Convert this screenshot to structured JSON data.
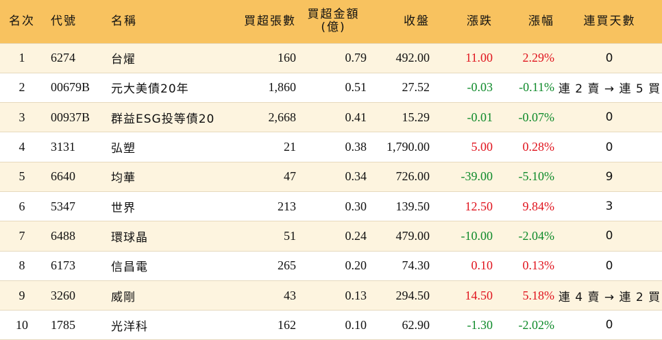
{
  "colors": {
    "header_bg": "#f8c25f",
    "odd_row_bg": "#fdf4df",
    "even_row_bg": "#ffffff",
    "up": "#e0141e",
    "down": "#0e8a2a"
  },
  "headers": {
    "rank": "名次",
    "code": "代號",
    "name": "名稱",
    "net_buy_qty": "買超張數",
    "net_buy_amount_line1": "買超金額",
    "net_buy_amount_line2": "(億)",
    "close": "收盤",
    "change": "漲跌",
    "change_pct": "漲幅",
    "streak": "連買天數"
  },
  "rows": [
    {
      "rank": "1",
      "code": "6274",
      "name": "台燿",
      "qty": "160",
      "amount": "0.79",
      "close": "492.00",
      "change": "11.00",
      "pct": "2.29%",
      "dir": "up",
      "streak": "0"
    },
    {
      "rank": "2",
      "code": "00679B",
      "name": "元大美債20年",
      "qty": "1,860",
      "amount": "0.51",
      "close": "27.52",
      "change": "-0.03",
      "pct": "-0.11%",
      "dir": "down",
      "streak": "連 2 賣 → 連 5 買"
    },
    {
      "rank": "3",
      "code": "00937B",
      "name": "群益ESG投等債20",
      "qty": "2,668",
      "amount": "0.41",
      "close": "15.29",
      "change": "-0.01",
      "pct": "-0.07%",
      "dir": "down",
      "streak": "0"
    },
    {
      "rank": "4",
      "code": "3131",
      "name": "弘塑",
      "qty": "21",
      "amount": "0.38",
      "close": "1,790.00",
      "change": "5.00",
      "pct": "0.28%",
      "dir": "up",
      "streak": "0"
    },
    {
      "rank": "5",
      "code": "6640",
      "name": "均華",
      "qty": "47",
      "amount": "0.34",
      "close": "726.00",
      "change": "-39.00",
      "pct": "-5.10%",
      "dir": "down",
      "streak": "9"
    },
    {
      "rank": "6",
      "code": "5347",
      "name": "世界",
      "qty": "213",
      "amount": "0.30",
      "close": "139.50",
      "change": "12.50",
      "pct": "9.84%",
      "dir": "up",
      "streak": "3"
    },
    {
      "rank": "7",
      "code": "6488",
      "name": "環球晶",
      "qty": "51",
      "amount": "0.24",
      "close": "479.00",
      "change": "-10.00",
      "pct": "-2.04%",
      "dir": "down",
      "streak": "0"
    },
    {
      "rank": "8",
      "code": "6173",
      "name": "信昌電",
      "qty": "265",
      "amount": "0.20",
      "close": "74.30",
      "change": "0.10",
      "pct": "0.13%",
      "dir": "up",
      "streak": "0"
    },
    {
      "rank": "9",
      "code": "3260",
      "name": "威剛",
      "qty": "43",
      "amount": "0.13",
      "close": "294.50",
      "change": "14.50",
      "pct": "5.18%",
      "dir": "up",
      "streak": "連 4 賣 → 連 2 買"
    },
    {
      "rank": "10",
      "code": "1785",
      "name": "光洋科",
      "qty": "162",
      "amount": "0.10",
      "close": "62.90",
      "change": "-1.30",
      "pct": "-2.02%",
      "dir": "down",
      "streak": "0"
    }
  ]
}
